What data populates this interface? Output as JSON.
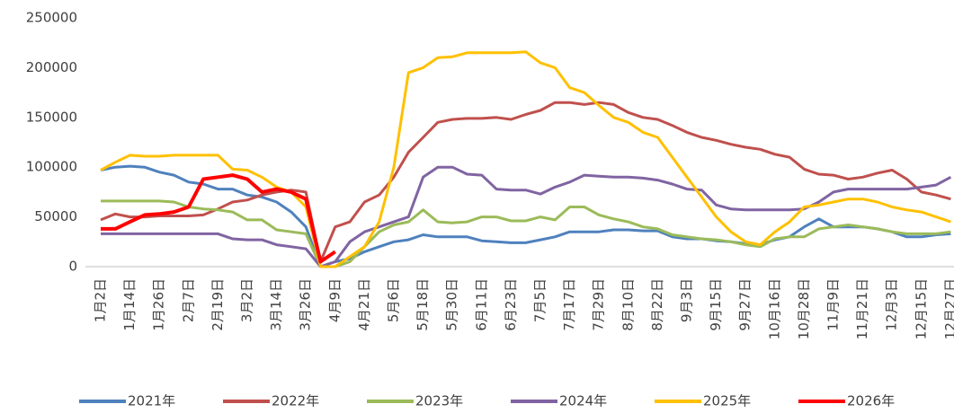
{
  "chart_data": {
    "type": "line",
    "categories": [
      "1月2日",
      null,
      "1月14日",
      null,
      "1月26日",
      null,
      "2月7日",
      null,
      "2月19日",
      null,
      "3月2日",
      null,
      "3月14日",
      null,
      "3月26日",
      null,
      "4月9日",
      null,
      "4月21日",
      null,
      "5月6日",
      null,
      "5月18日",
      null,
      "5月30日",
      null,
      "6月11日",
      null,
      "6月23日",
      null,
      "7月5日",
      null,
      "7月17日",
      null,
      "7月29日",
      null,
      "8月10日",
      null,
      "8月22日",
      null,
      "9月3日",
      null,
      "9月15日",
      null,
      "9月27日",
      null,
      "10月16日",
      null,
      "10月28日",
      null,
      "11月9日",
      null,
      "11月21日",
      null,
      "12月3日",
      null,
      "12月15日",
      null,
      "12月27日"
    ],
    "ylim": [
      0,
      250000
    ],
    "yticks": [
      0,
      50000,
      100000,
      150000,
      200000,
      250000
    ],
    "grid": false,
    "legend": "bottom",
    "series": [
      {
        "name": "2021年",
        "color": "#4f81bd",
        "values": [
          97000,
          100000,
          101000,
          100000,
          95000,
          92000,
          85000,
          83000,
          78000,
          78000,
          72000,
          70000,
          65000,
          55000,
          40000,
          0,
          5000,
          8000,
          15000,
          20000,
          25000,
          27000,
          32000,
          30000,
          30000,
          30000,
          26000,
          25000,
          24000,
          24000,
          27000,
          30000,
          35000,
          35000,
          35000,
          37000,
          37000,
          36000,
          36000,
          30000,
          28000,
          28000,
          26000,
          25000,
          23000,
          22000,
          27000,
          30000,
          40000,
          48000,
          40000,
          40000,
          40000,
          38000,
          35000,
          30000,
          30000,
          32000,
          33000
        ]
      },
      {
        "name": "2022年",
        "color": "#c0504d",
        "values": [
          47000,
          53000,
          50000,
          50000,
          51000,
          51000,
          51000,
          52000,
          58000,
          65000,
          67000,
          72000,
          75000,
          77000,
          75000,
          5000,
          40000,
          45000,
          65000,
          72000,
          90000,
          115000,
          130000,
          145000,
          148000,
          149000,
          149000,
          150000,
          148000,
          153000,
          157000,
          165000,
          165000,
          163000,
          165000,
          163000,
          155000,
          150000,
          148000,
          142000,
          135000,
          130000,
          127000,
          123000,
          120000,
          118000,
          113000,
          110000,
          98000,
          93000,
          92000,
          88000,
          90000,
          94000,
          97000,
          88000,
          75000,
          72000,
          68000
        ]
      },
      {
        "name": "2023年",
        "color": "#9bbb59",
        "values": [
          66000,
          66000,
          66000,
          66000,
          66000,
          65000,
          60000,
          58000,
          57000,
          55000,
          47000,
          47000,
          37000,
          35000,
          33000,
          0,
          0,
          5000,
          20000,
          35000,
          42000,
          45000,
          57000,
          45000,
          44000,
          45000,
          50000,
          50000,
          46000,
          46000,
          50000,
          47000,
          60000,
          60000,
          52000,
          48000,
          45000,
          40000,
          38000,
          32000,
          30000,
          28000,
          27000,
          25000,
          22000,
          20000,
          28000,
          30000,
          30000,
          38000,
          40000,
          42000,
          40000,
          38000,
          35000,
          33000,
          33000,
          33000,
          35000
        ]
      },
      {
        "name": "2024年",
        "color": "#8064a2",
        "values": [
          33000,
          33000,
          33000,
          33000,
          33000,
          33000,
          33000,
          33000,
          33000,
          28000,
          27000,
          27000,
          22000,
          20000,
          18000,
          0,
          5000,
          25000,
          35000,
          40000,
          45000,
          50000,
          90000,
          100000,
          100000,
          93000,
          92000,
          78000,
          77000,
          77000,
          73000,
          80000,
          85000,
          92000,
          91000,
          90000,
          90000,
          89000,
          87000,
          83000,
          78000,
          77000,
          62000,
          58000,
          57000,
          57000,
          57000,
          57000,
          58000,
          65000,
          75000,
          78000,
          78000,
          78000,
          78000,
          78000,
          80000,
          82000,
          90000
        ]
      },
      {
        "name": "2025年",
        "color": "#ffc000",
        "values": [
          97000,
          105000,
          112000,
          111000,
          111000,
          112000,
          112000,
          112000,
          112000,
          98000,
          97000,
          90000,
          80000,
          75000,
          60000,
          0,
          0,
          10000,
          20000,
          45000,
          100000,
          195000,
          200000,
          210000,
          211000,
          215000,
          215000,
          215000,
          215000,
          216000,
          205000,
          200000,
          180000,
          175000,
          162000,
          150000,
          145000,
          135000,
          130000,
          110000,
          90000,
          70000,
          50000,
          35000,
          25000,
          22000,
          35000,
          45000,
          60000,
          62000,
          65000,
          68000,
          68000,
          65000,
          60000,
          57000,
          55000,
          50000,
          45000
        ]
      },
      {
        "name": "2026年",
        "color": "#ff0000",
        "values": [
          38000,
          38000,
          45000,
          52000,
          53000,
          55000,
          60000,
          88000,
          90000,
          92000,
          88000,
          75000,
          78000,
          75000,
          68000,
          5000,
          15000,
          null,
          null,
          null,
          null,
          null,
          null,
          null,
          null,
          null,
          null,
          null,
          null,
          null,
          null,
          null,
          null,
          null,
          null,
          null,
          null,
          null,
          null,
          null,
          null,
          null,
          null,
          null,
          null,
          null,
          null,
          null,
          null,
          null,
          null,
          null,
          null,
          null,
          null,
          null,
          null,
          null,
          null
        ]
      }
    ]
  }
}
